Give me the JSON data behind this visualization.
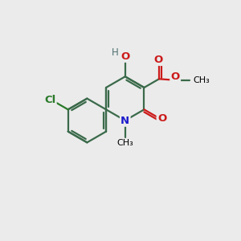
{
  "bg_color": "#ebebeb",
  "bond_color": "#3a6a4a",
  "n_color": "#1a1acc",
  "o_color": "#cc1a1a",
  "cl_color": "#2a7a2a",
  "h_color": "#507070",
  "bond_lw": 1.6,
  "font_size": 9.5,
  "font_size_small": 8.0,
  "xlim": [
    0,
    10
  ],
  "ylim": [
    0,
    10
  ]
}
